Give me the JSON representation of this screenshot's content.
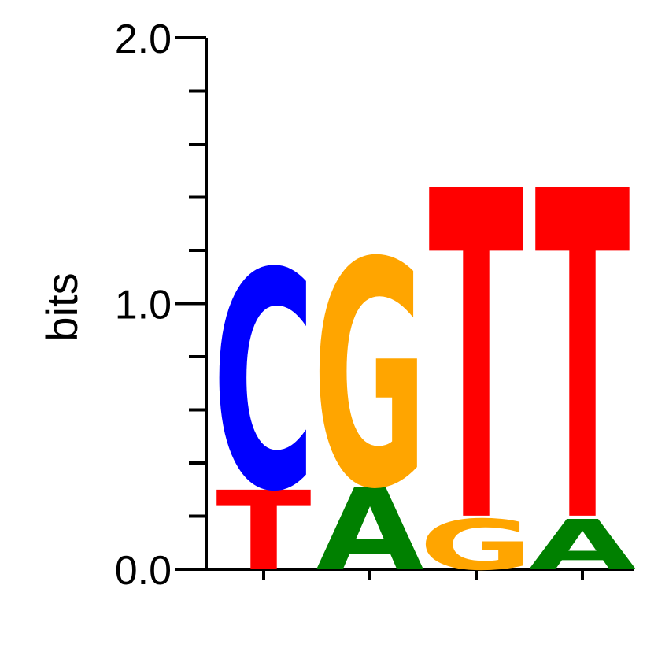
{
  "chart_data": {
    "type": "sequence-logo",
    "ylabel": "bits",
    "ylim": [
      0,
      2
    ],
    "yticks": [
      "0.0",
      "1.0",
      "2.0"
    ],
    "colors": {
      "A": "#008000",
      "C": "#0000ff",
      "G": "#ffa500",
      "T": "#ff0000"
    },
    "positions": [
      {
        "letters": [
          {
            "base": "T",
            "bits": 0.3
          },
          {
            "base": "C",
            "bits": 0.82
          }
        ]
      },
      {
        "letters": [
          {
            "base": "A",
            "bits": 0.31
          },
          {
            "base": "G",
            "bits": 0.85
          }
        ]
      },
      {
        "letters": [
          {
            "base": "G",
            "bits": 0.19
          },
          {
            "base": "T",
            "bits": 1.24
          }
        ]
      },
      {
        "letters": [
          {
            "base": "A",
            "bits": 0.19
          },
          {
            "base": "T",
            "bits": 1.24
          }
        ]
      }
    ]
  }
}
